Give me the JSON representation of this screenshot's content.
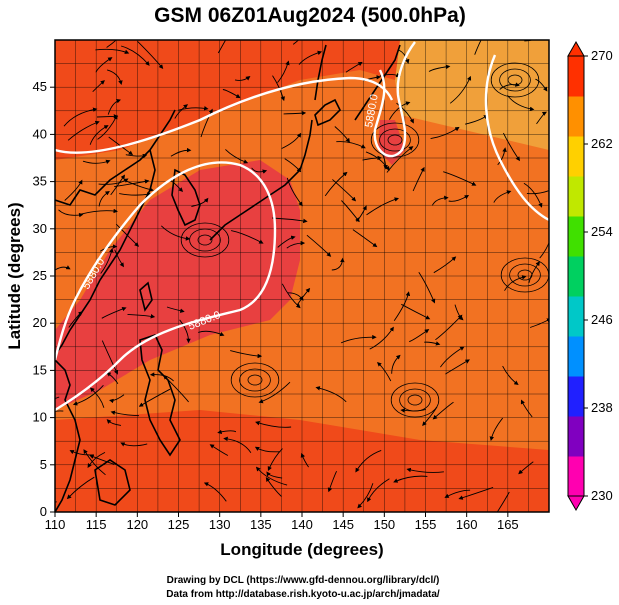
{
  "title": "GSM 06Z01Aug2024 (500.0hPa)",
  "xlabel": "Longitude (degrees)",
  "ylabel": "Latitude  (degrees)",
  "credit_line1": "Drawing by DCL (https://www.gfd-dennou.org/library/dcl/)",
  "credit_line2": "Data from http://database.rish.kyoto-u.ac.jp/arch/jmadata/",
  "colorbar": {
    "ticks": [
      "270",
      "262",
      "254",
      "246",
      "238",
      "230"
    ],
    "colors": [
      "#ff00b0",
      "#8000c0",
      "#2020ff",
      "#0090ff",
      "#00c8c8",
      "#00d060",
      "#40e000",
      "#c0e800",
      "#ffd000",
      "#ff9000",
      "#ff3000"
    ]
  },
  "contour_labels": [
    "5880.0",
    "5880.0",
    "5880.0"
  ],
  "field_colors": {
    "hot": "#e84040",
    "warm": "#f04a1a",
    "mid": "#f27222",
    "cool": "#f0a03a"
  },
  "chart_data": {
    "type": "heatmap",
    "title": "GSM 06Z01Aug2024 (500.0hPa)",
    "xlabel": "Longitude (degrees)",
    "ylabel": "Latitude  (degrees)",
    "xlim": [
      110,
      170
    ],
    "ylim": [
      0,
      50
    ],
    "xticks": [
      110,
      115,
      120,
      125,
      130,
      135,
      140,
      145,
      150,
      155,
      160,
      165
    ],
    "yticks": [
      0,
      5,
      10,
      15,
      20,
      25,
      30,
      35,
      40,
      45
    ],
    "colorbar_range": [
      230,
      270
    ],
    "colorbar_ticks": [
      230,
      238,
      246,
      254,
      262,
      270
    ],
    "contour_value": 5880.0,
    "grid": true
  }
}
